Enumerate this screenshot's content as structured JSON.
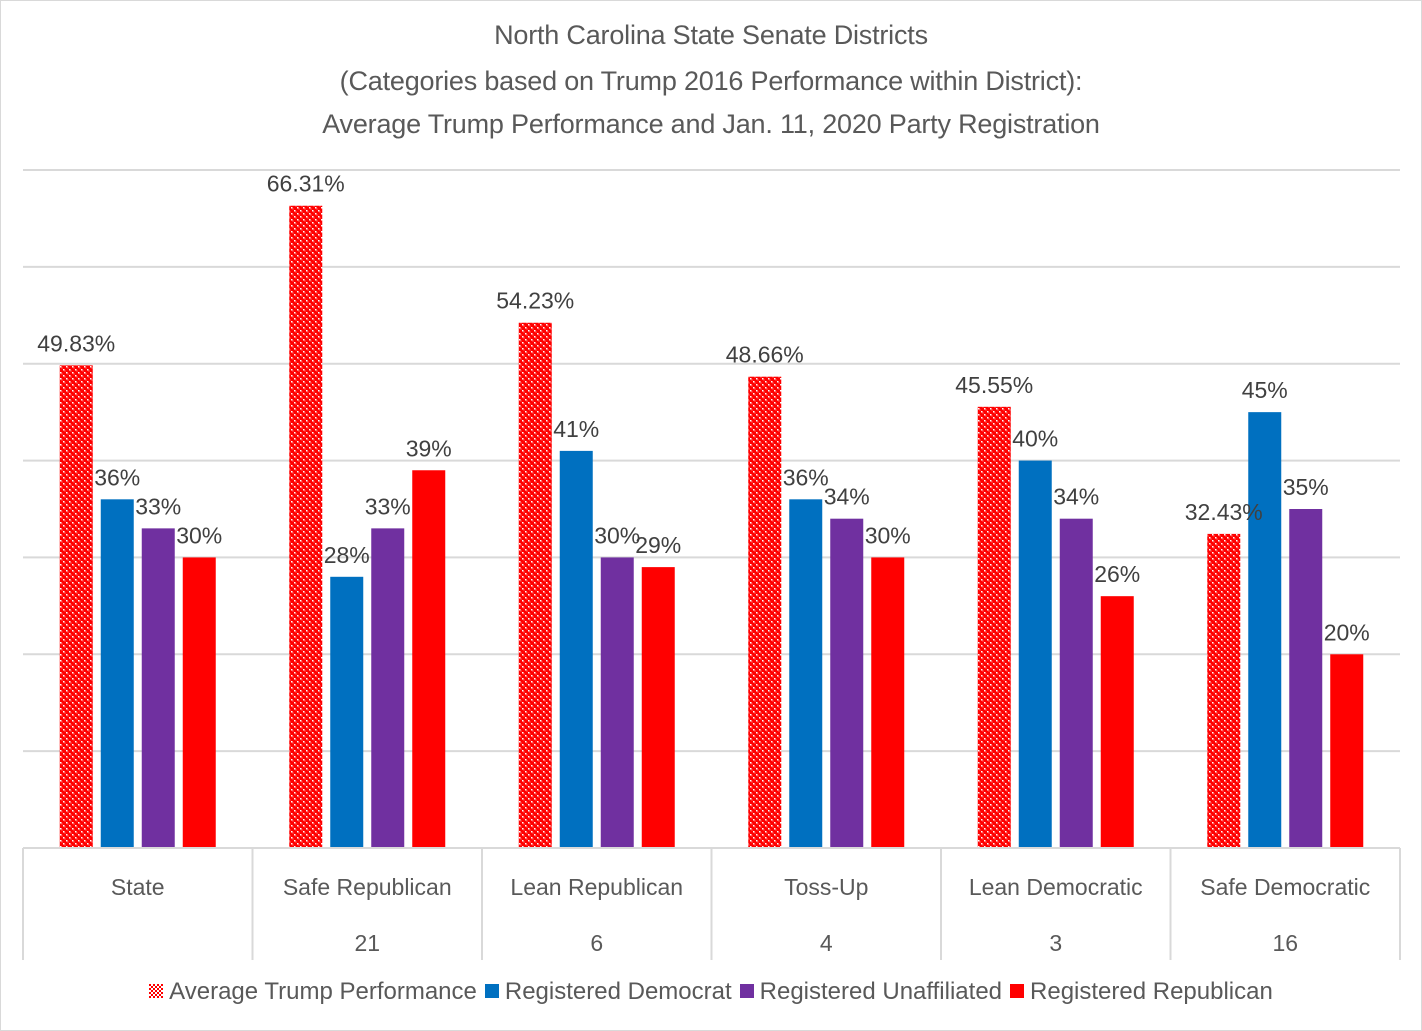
{
  "chart_data": {
    "type": "bar",
    "title_lines": [
      "North Carolina State Senate Districts",
      "(Categories based on Trump 2016 Performance within District):",
      "Average Trump Performance and Jan. 11, 2020 Party Registration"
    ],
    "categories": [
      "State",
      "Safe Republican",
      "Lean Republican",
      "Toss-Up",
      "Lean Democratic",
      "Safe Democratic"
    ],
    "category_counts": [
      "",
      "21",
      "6",
      "4",
      "3",
      "16"
    ],
    "series": [
      {
        "name": "Average Trump Performance",
        "color": "#ff0000",
        "pattern": "checker",
        "values": [
          49.83,
          66.31,
          54.23,
          48.66,
          45.55,
          32.43
        ],
        "labels": [
          "49.83%",
          "66.31%",
          "54.23%",
          "48.66%",
          "45.55%",
          "32.43%"
        ]
      },
      {
        "name": "Registered Democrat",
        "color": "#0070c0",
        "values": [
          36,
          28,
          41,
          36,
          40,
          45
        ],
        "labels": [
          "36%",
          "28%",
          "41%",
          "36%",
          "40%",
          "45%"
        ]
      },
      {
        "name": "Registered Unaffiliated",
        "color": "#7030a0",
        "values": [
          33,
          33,
          30,
          34,
          34,
          35
        ],
        "labels": [
          "33%",
          "33%",
          "30%",
          "34%",
          "34%",
          "35%"
        ]
      },
      {
        "name": "Registered Republican",
        "color": "#ff0000",
        "values": [
          30,
          39,
          29,
          30,
          26,
          20
        ],
        "labels": [
          "30%",
          "39%",
          "29%",
          "30%",
          "26%",
          "20%"
        ]
      }
    ],
    "xlabel": "",
    "ylabel": "",
    "ylim": [
      0,
      70
    ],
    "y_gridline_step": 10,
    "y_tick_labels_shown": false,
    "grid": true,
    "legend_position": "bottom",
    "colors": {
      "gridline": "#d9d9d9",
      "text": "#595959",
      "data_label": "#404040"
    }
  }
}
